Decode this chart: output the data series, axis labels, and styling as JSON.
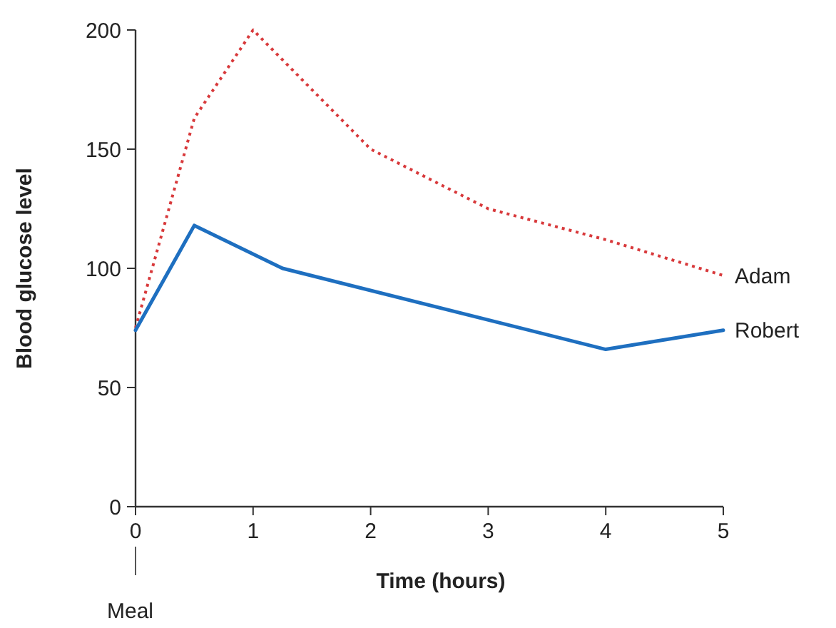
{
  "chart_data": {
    "type": "line",
    "xlabel": "Time (hours)",
    "ylabel": "Blood glucose level",
    "xlim": [
      0,
      5
    ],
    "ylim": [
      0,
      200
    ],
    "xticks": [
      0,
      1,
      2,
      3,
      4,
      5
    ],
    "yticks": [
      0,
      50,
      100,
      150,
      200
    ],
    "grid": false,
    "marker": "none",
    "annotations": [
      {
        "text": "Meal",
        "x": 0
      }
    ],
    "series": [
      {
        "name": "Adam",
        "color": "#d8393b",
        "line_style": "dotted",
        "x": [
          0,
          0.5,
          1,
          2,
          3,
          4,
          5
        ],
        "values": [
          75,
          163,
          200,
          150,
          125,
          112,
          97
        ]
      },
      {
        "name": "Robert",
        "color": "#1e6fc0",
        "line_style": "solid",
        "x": [
          0,
          0.5,
          1.25,
          4,
          5
        ],
        "values": [
          74,
          118,
          100,
          66,
          74
        ]
      }
    ]
  }
}
